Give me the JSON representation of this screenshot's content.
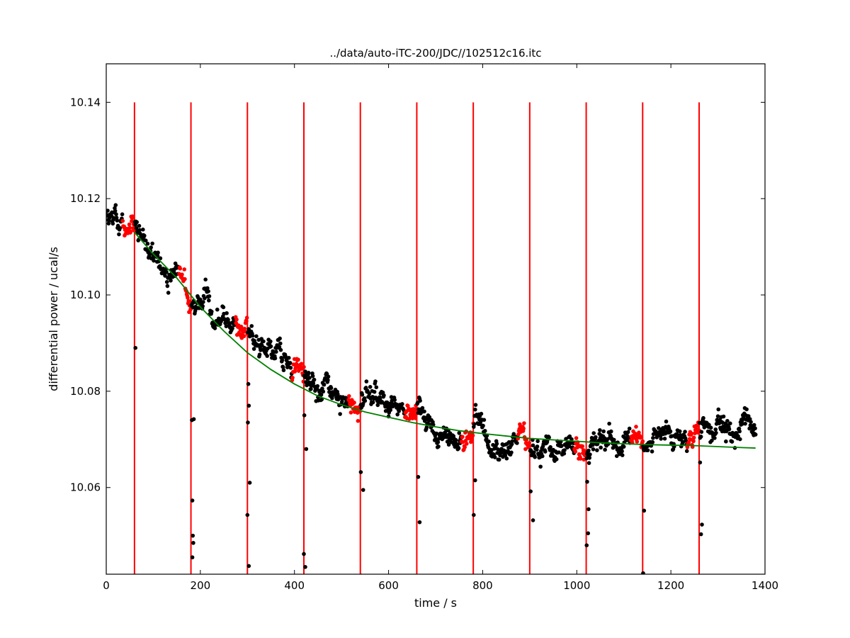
{
  "chart_data": {
    "type": "scatter",
    "title": "../data/auto-iTC-200/JDC//102512c16.itc",
    "xlabel": "time / s",
    "ylabel": "differential power / ucal/s",
    "xlim": [
      0,
      1400
    ],
    "ylim": [
      10.042,
      10.148
    ],
    "x_ticks": [
      0,
      200,
      400,
      600,
      800,
      1000,
      1200,
      1400
    ],
    "x_tick_labels": [
      "0",
      "200",
      "400",
      "600",
      "800",
      "1000",
      "1200",
      "1400"
    ],
    "y_ticks": [
      10.06,
      10.08,
      10.1,
      10.12,
      10.14
    ],
    "y_tick_labels": [
      "10.06",
      "10.08",
      "10.10",
      "10.12",
      "10.14"
    ],
    "grid": false,
    "legend": "none",
    "injection_times": [
      60,
      180,
      300,
      420,
      540,
      660,
      780,
      900,
      1020,
      1140,
      1260
    ],
    "injection_line_range": [
      10.042,
      10.14
    ],
    "fit_curve": {
      "color": "#008000",
      "x": [
        60,
        100,
        150,
        200,
        250,
        300,
        350,
        400,
        450,
        500,
        550,
        600,
        650,
        700,
        750,
        800,
        850,
        900,
        950,
        1000,
        1050,
        1100,
        1150,
        1200,
        1250,
        1300,
        1350,
        1380
      ],
      "y": [
        10.113,
        10.1085,
        10.1035,
        10.0975,
        10.0925,
        10.088,
        10.0845,
        10.0815,
        10.079,
        10.0772,
        10.0757,
        10.0746,
        10.0735,
        10.0726,
        10.0718,
        10.0712,
        10.0707,
        10.0702,
        10.0699,
        10.0696,
        10.0693,
        10.0691,
        10.0689,
        10.0688,
        10.0687,
        10.0685,
        10.0683,
        10.0682
      ]
    },
    "baseline_trend": {
      "x": [
        0,
        60,
        120,
        180,
        240,
        300,
        360,
        420,
        480,
        540,
        600,
        660,
        720,
        780,
        840,
        900,
        960,
        1020,
        1080,
        1140,
        1200,
        1260,
        1320,
        1380
      ],
      "y": [
        10.1185,
        10.1135,
        10.1065,
        10.1005,
        10.0975,
        10.0925,
        10.0875,
        10.0835,
        10.0805,
        10.0785,
        10.0765,
        10.0735,
        10.0725,
        10.0705,
        10.0695,
        10.0685,
        10.0695,
        10.0675,
        10.0685,
        10.0685,
        10.0695,
        10.0705,
        10.0715,
        10.0725
      ]
    },
    "baseline_noise": 0.0024,
    "point_spacing_s": 1,
    "marker_colors": {
      "baseline": "#000000",
      "injection_window": "#ff0000"
    },
    "injection_window_s": [
      -25,
      0
    ],
    "outlier_points": [
      {
        "x": 62,
        "y": 10.089
      },
      {
        "x": 182,
        "y": 10.074
      },
      {
        "x": 186,
        "y": 10.0742
      },
      {
        "x": 183,
        "y": 10.0573
      },
      {
        "x": 184,
        "y": 10.05
      },
      {
        "x": 185,
        "y": 10.0485
      },
      {
        "x": 183,
        "y": 10.0455
      },
      {
        "x": 302,
        "y": 10.0815
      },
      {
        "x": 303,
        "y": 10.077
      },
      {
        "x": 301,
        "y": 10.0735
      },
      {
        "x": 305,
        "y": 10.061
      },
      {
        "x": 300,
        "y": 10.0543
      },
      {
        "x": 303,
        "y": 10.0437
      },
      {
        "x": 421,
        "y": 10.075
      },
      {
        "x": 425,
        "y": 10.068
      },
      {
        "x": 420,
        "y": 10.0462
      },
      {
        "x": 423,
        "y": 10.0435
      },
      {
        "x": 541,
        "y": 10.0632
      },
      {
        "x": 546,
        "y": 10.0595
      },
      {
        "x": 542,
        "y": 10.0417
      },
      {
        "x": 663,
        "y": 10.0622
      },
      {
        "x": 666,
        "y": 10.0528
      },
      {
        "x": 784,
        "y": 10.0615
      },
      {
        "x": 781,
        "y": 10.0543
      },
      {
        "x": 902,
        "y": 10.0592
      },
      {
        "x": 907,
        "y": 10.0532
      },
      {
        "x": 1022,
        "y": 10.0612
      },
      {
        "x": 1025,
        "y": 10.0555
      },
      {
        "x": 1024,
        "y": 10.0505
      },
      {
        "x": 1021,
        "y": 10.048
      },
      {
        "x": 1143,
        "y": 10.0552
      },
      {
        "x": 1141,
        "y": 10.0422
      },
      {
        "x": 1262,
        "y": 10.0652
      },
      {
        "x": 1264,
        "y": 10.0503
      },
      {
        "x": 1266,
        "y": 10.0523
      }
    ]
  }
}
